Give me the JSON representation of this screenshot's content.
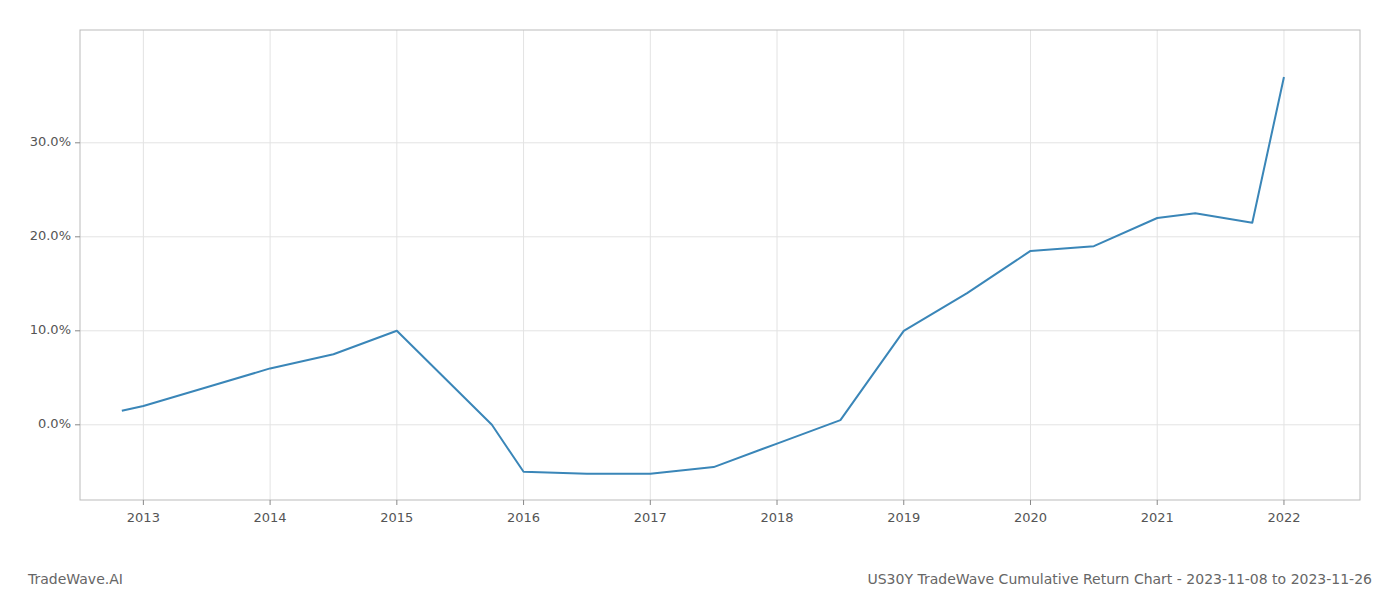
{
  "chart_data": {
    "type": "line",
    "title": "US30Y TradeWave Cumulative Return Chart - 2023-11-08 to 2023-11-26",
    "annotations": [
      "TradeWave.AI"
    ],
    "x": [
      2012.83,
      2013.0,
      2013.5,
      2014.0,
      2014.5,
      2015.0,
      2015.75,
      2016.0,
      2016.5,
      2017.0,
      2017.5,
      2018.0,
      2018.5,
      2019.0,
      2019.5,
      2020.0,
      2020.5,
      2021.0,
      2021.3,
      2021.75,
      2022.0
    ],
    "values": [
      0.015,
      0.02,
      0.04,
      0.06,
      0.075,
      0.1,
      0.0,
      -0.05,
      -0.052,
      -0.052,
      -0.045,
      -0.02,
      0.005,
      0.1,
      0.14,
      0.185,
      0.19,
      0.22,
      0.225,
      0.215,
      0.37
    ],
    "color": "#3a86b8",
    "xlim": [
      2012.5,
      2022.6
    ],
    "ylim": [
      -0.08,
      0.42
    ],
    "xticks": [
      2013,
      2014,
      2015,
      2016,
      2017,
      2018,
      2019,
      2020,
      2021,
      2022
    ],
    "yticks": [
      {
        "value": 0.0,
        "label": "0.0%"
      },
      {
        "value": 0.1,
        "label": "10.0%"
      },
      {
        "value": 0.2,
        "label": "20.0%"
      },
      {
        "value": 0.3,
        "label": "30.0%"
      }
    ],
    "grid": true
  }
}
